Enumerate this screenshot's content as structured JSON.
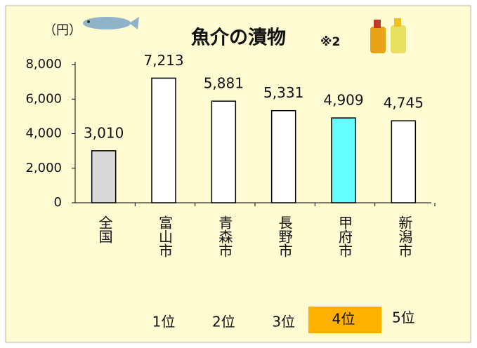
{
  "chart_data": {
    "type": "bar",
    "title": "魚介の漬物",
    "title_note": "※2",
    "unit_label": "（円）",
    "categories": [
      "全国",
      "富山市",
      "青森市",
      "長野市",
      "甲府市",
      "新潟市"
    ],
    "values": [
      3010,
      7213,
      5881,
      5331,
      4909,
      4745
    ],
    "value_labels": [
      "3,010",
      "7,213",
      "5,881",
      "5,331",
      "4,909",
      "4,745"
    ],
    "colors": [
      "#d9d9d9",
      "#ffffff",
      "#ffffff",
      "#ffffff",
      "#66ffff",
      "#ffffff"
    ],
    "ylim": [
      0,
      8000
    ],
    "yticks": [
      0,
      {
        "value": 2000,
        "label": "2,000"
      },
      {
        "value": 4000,
        "label": "4,000"
      },
      {
        "value": 6000,
        "label": "6,000"
      },
      {
        "value": 8000,
        "label": "8,000"
      }
    ],
    "grid": false,
    "ranks": [
      "1位",
      "2位",
      "3位",
      "4位",
      "5位"
    ],
    "highlight_rank": 3,
    "highlight_color": "#ffb000"
  }
}
